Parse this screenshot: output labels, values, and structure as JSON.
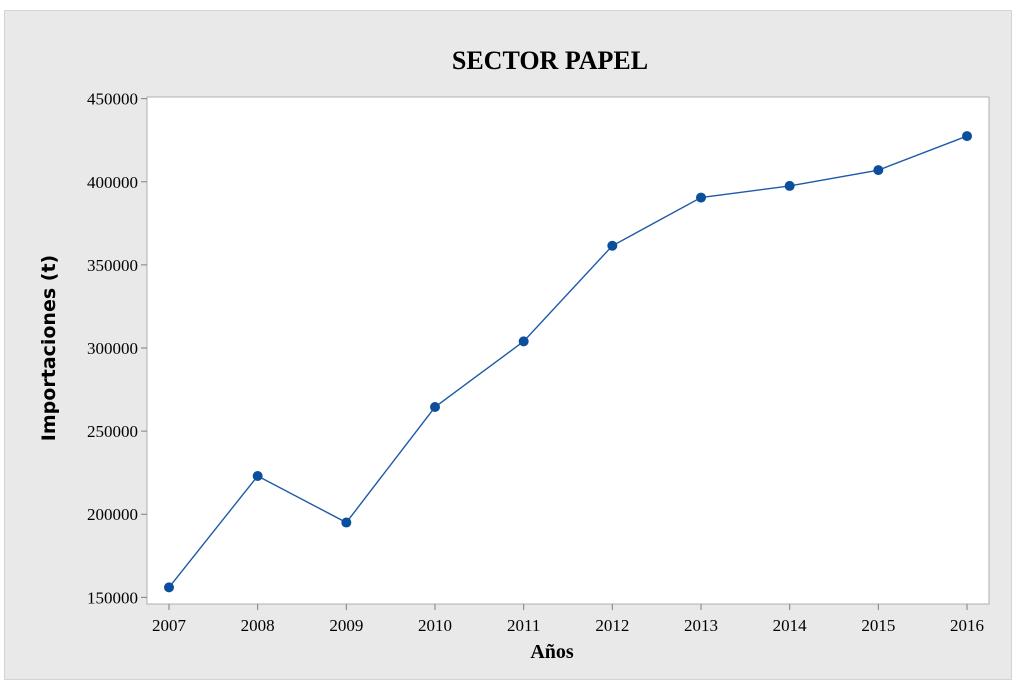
{
  "chart_data": {
    "type": "line",
    "title": "SECTOR PAPEL",
    "xlabel": "Años",
    "ylabel": "Importaciones (t)",
    "x": [
      "2007",
      "2008",
      "2009",
      "2010",
      "2011",
      "2012",
      "2013",
      "2014",
      "2015",
      "2016"
    ],
    "series": [
      {
        "values": [
          156000,
          223000,
          195000,
          264500,
          304000,
          361500,
          390500,
          397500,
          407000,
          427500
        ]
      }
    ],
    "ylim": [
      146000,
      451000
    ],
    "yticks": [
      150000,
      200000,
      250000,
      300000,
      350000,
      400000,
      450000
    ],
    "ytick_labels": [
      "150000",
      "200000",
      "250000",
      "300000",
      "350000",
      "400000",
      "450000"
    ],
    "grid": false,
    "colors": {
      "line": "#1f5aa6",
      "marker": "#0b4f9c",
      "background": "#e9e9e9",
      "plot_background": "#ffffff"
    }
  }
}
